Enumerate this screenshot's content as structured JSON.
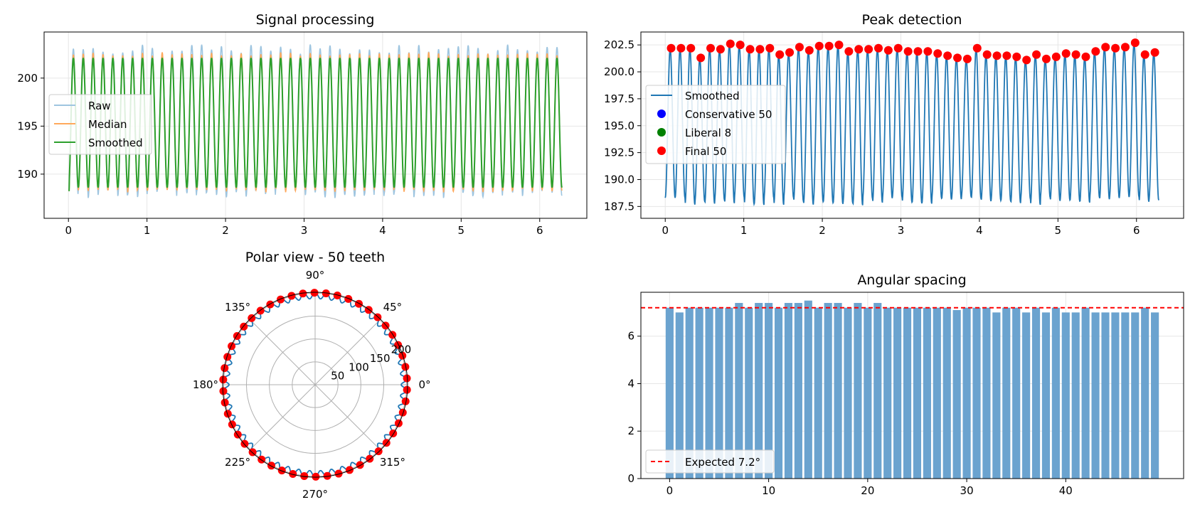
{
  "figure": {
    "charts": [
      "signal",
      "peaks",
      "polar",
      "spacing"
    ]
  },
  "chart_data": [
    {
      "id": "signal",
      "type": "line",
      "title": "Signal processing",
      "xlabel": "",
      "ylabel": "",
      "xlim": [
        -0.31,
        6.6
      ],
      "ylim": [
        185.4,
        204.8
      ],
      "xticks": [
        0,
        1,
        2,
        3,
        4,
        5,
        6
      ],
      "yticks": [
        190,
        195,
        200
      ],
      "grid": true,
      "legend_position": "center-left",
      "periods": 50,
      "x_end": 6.283,
      "series": [
        {
          "name": "Raw",
          "color": "#9ec5e0",
          "low": 188.0,
          "high": 203.0,
          "jitter": 0.5
        },
        {
          "name": "Median",
          "color": "#ffa95c",
          "low": 188.3,
          "high": 202.5,
          "jitter": 0.2
        },
        {
          "name": "Smoothed",
          "color": "#2ca02c",
          "low": 188.6,
          "high": 202.1,
          "jitter": 0.0
        }
      ]
    },
    {
      "id": "peaks",
      "type": "scatter",
      "title": "Peak detection",
      "xlabel": "",
      "ylabel": "",
      "xlim": [
        -0.31,
        6.6
      ],
      "ylim": [
        186.4,
        203.7
      ],
      "xticks": [
        0,
        1,
        2,
        3,
        4,
        5,
        6
      ],
      "yticks": [
        187.5,
        190.0,
        192.5,
        195.0,
        197.5,
        200.0,
        202.5
      ],
      "ytick_labels": [
        "187.5",
        "190.0",
        "192.5",
        "195.0",
        "197.5",
        "200.0",
        "202.5"
      ],
      "grid": true,
      "legend_position": "center-left",
      "line": {
        "name": "Smoothed",
        "color": "#1f77b4"
      },
      "markers": [
        {
          "name": "Conservative 50",
          "color": "#0000ff"
        },
        {
          "name": "Liberal 8",
          "color": "#008000"
        },
        {
          "name": "Final 50",
          "color": "#ff0000"
        }
      ],
      "peak_x_step": 0.1257,
      "peak_x_start": 0.075,
      "peak_values": [
        202.2,
        202.2,
        202.2,
        201.3,
        202.2,
        202.1,
        202.6,
        202.5,
        202.1,
        202.1,
        202.2,
        201.6,
        201.8,
        202.3,
        202.0,
        202.4,
        202.4,
        202.5,
        201.9,
        202.1,
        202.1,
        202.2,
        202.0,
        202.2,
        201.9,
        201.9,
        201.9,
        201.7,
        201.5,
        201.3,
        201.2,
        202.2,
        201.6,
        201.5,
        201.5,
        201.4,
        201.1,
        201.6,
        201.2,
        201.4,
        201.7,
        201.6,
        201.4,
        201.9,
        202.3,
        202.2,
        202.3,
        202.7,
        201.6,
        201.8
      ]
    },
    {
      "id": "polar",
      "type": "polar",
      "title": "Polar view - 50 teeth",
      "angle_labels": [
        "0°",
        "45°",
        "90°",
        "135°",
        "180°",
        "225°",
        "270°",
        "315°"
      ],
      "radial_ticks": [
        50,
        100,
        150,
        200
      ],
      "rmax": 202,
      "teeth": 50,
      "line_color": "#1f77b4",
      "marker_color": "#ff0000"
    },
    {
      "id": "spacing",
      "type": "bar",
      "title": "Angular spacing",
      "xlabel": "",
      "ylabel": "",
      "xlim": [
        -2.9,
        51.9
      ],
      "ylim": [
        0,
        7.85
      ],
      "xticks": [
        0,
        10,
        20,
        30,
        40
      ],
      "yticks": [
        0,
        2,
        4,
        6
      ],
      "grid": true,
      "legend_position": "bottom-left",
      "bar_color": "#6ba3cf",
      "reference": {
        "name": "Expected 7.2°",
        "value": 7.2,
        "color": "#ff0000"
      },
      "values": [
        7.2,
        7.0,
        7.2,
        7.2,
        7.2,
        7.2,
        7.2,
        7.4,
        7.2,
        7.4,
        7.4,
        7.2,
        7.4,
        7.4,
        7.5,
        7.2,
        7.4,
        7.4,
        7.2,
        7.4,
        7.2,
        7.4,
        7.2,
        7.2,
        7.2,
        7.2,
        7.2,
        7.2,
        7.2,
        7.1,
        7.2,
        7.2,
        7.2,
        7.0,
        7.2,
        7.2,
        7.0,
        7.2,
        7.0,
        7.2,
        7.0,
        7.0,
        7.2,
        7.0,
        7.0,
        7.0,
        7.0,
        7.0,
        7.2,
        7.0
      ]
    }
  ]
}
